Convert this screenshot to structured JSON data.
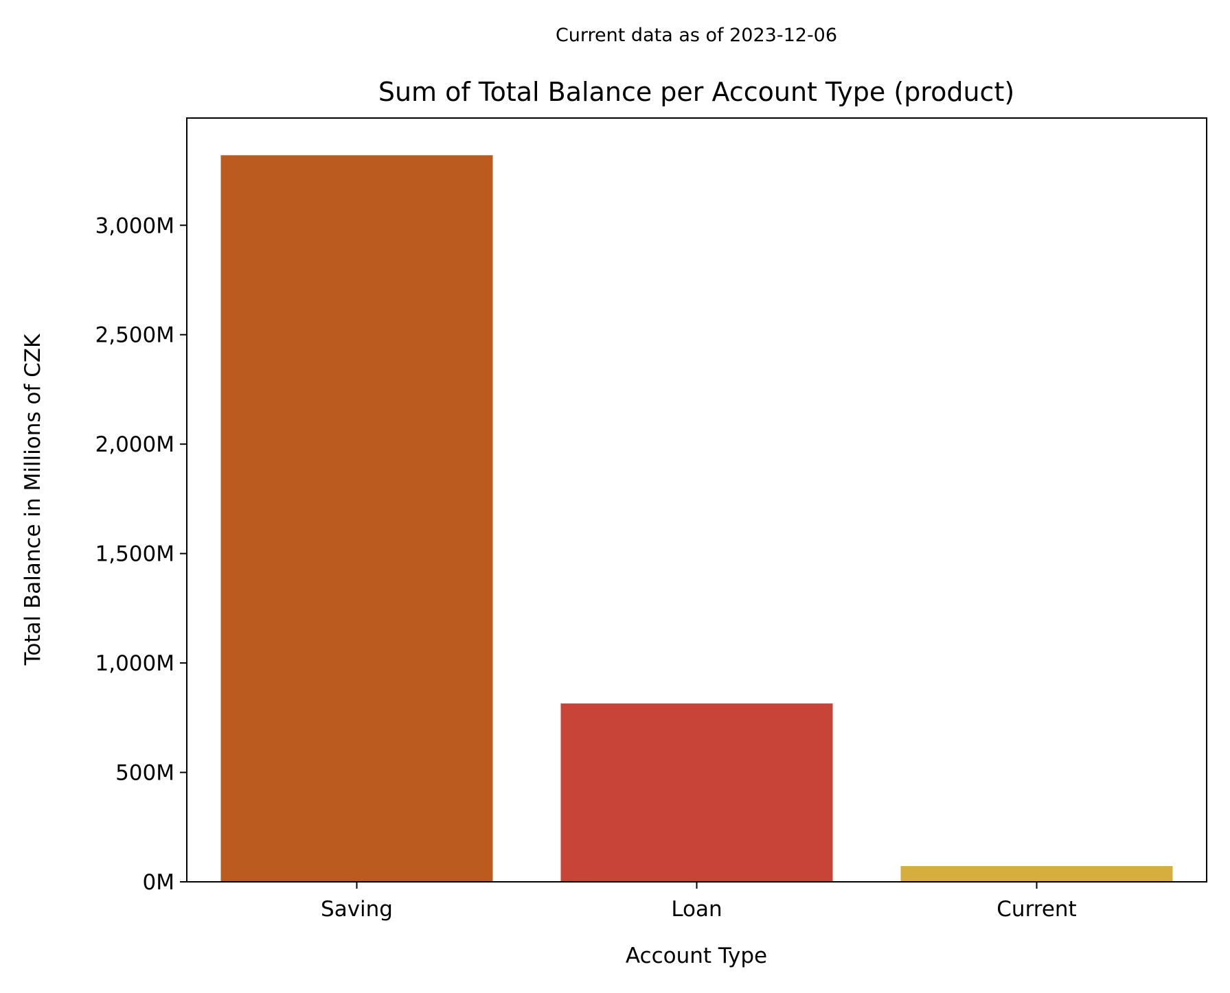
{
  "header": {
    "subtitle": "Current data as of 2023-12-06"
  },
  "chart_data": {
    "type": "bar",
    "title": "Sum of Total Balance per Account Type (product)",
    "xlabel": "Account Type",
    "ylabel": "Total Balance in Millions of CZK",
    "categories": [
      "Saving",
      "Loan",
      "Current"
    ],
    "values": [
      3320,
      815,
      72
    ],
    "colors": [
      "#BC5B1F",
      "#C84438",
      "#D6AE3E"
    ],
    "ylim": [
      0,
      3490
    ],
    "yticks": [
      0,
      500,
      1000,
      1500,
      2000,
      2500,
      3000
    ],
    "ytick_labels": [
      "0M",
      "500M",
      "1,000M",
      "1,500M",
      "2,000M",
      "2,500M",
      "3,000M"
    ],
    "grid": false,
    "legend": "none"
  }
}
